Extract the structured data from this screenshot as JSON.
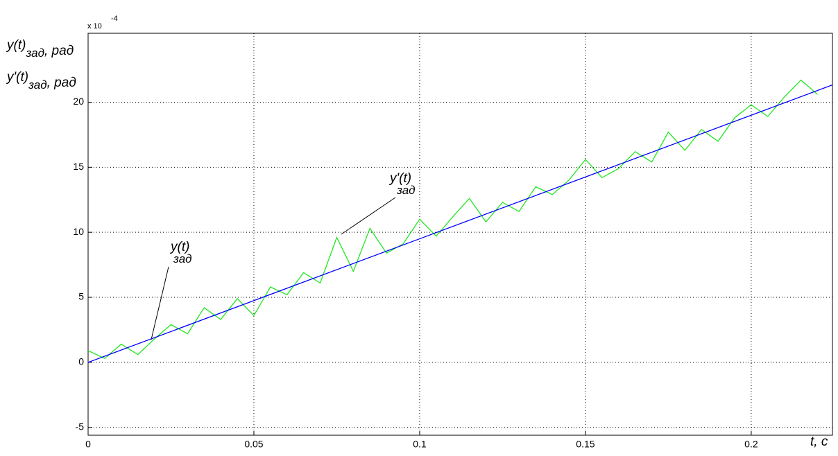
{
  "chart_data": {
    "type": "line",
    "y_label": [
      {
        "main": "y(t)",
        "sub": "зад",
        "unit": ", рад"
      },
      {
        "main": "y'(t)",
        "sub": "зад",
        "unit": ", рад"
      }
    ],
    "x_label": "t, c",
    "y_multiplier": {
      "base": "x 10",
      "exponent": "-4"
    },
    "annotations": [
      {
        "main": "y(t)",
        "sub": "зад"
      },
      {
        "main": "y'(t)",
        "sub": "зад"
      }
    ],
    "xlim": [
      0,
      0.2245
    ],
    "ylim": [
      -5.6,
      25.3
    ],
    "xticks": [
      0,
      0.05,
      0.1,
      0.15,
      0.2
    ],
    "yticks": [
      -5,
      0,
      5,
      10,
      15,
      20
    ],
    "grid": true,
    "series": [
      {
        "color": "#22e622",
        "x": [
          0,
          0.005,
          0.01,
          0.015,
          0.02,
          0.025,
          0.03,
          0.035,
          0.04,
          0.045,
          0.05,
          0.055,
          0.06,
          0.065,
          0.07,
          0.075,
          0.08,
          0.085,
          0.09,
          0.095,
          0.1,
          0.105,
          0.11,
          0.115,
          0.12,
          0.125,
          0.13,
          0.135,
          0.14,
          0.145,
          0.15,
          0.155,
          0.16,
          0.165,
          0.17,
          0.175,
          0.18,
          0.185,
          0.19,
          0.195,
          0.2,
          0.205,
          0.21,
          0.215,
          0.22
        ],
        "values": [
          0.9,
          0.3,
          1.4,
          0.6,
          1.8,
          2.9,
          2.2,
          4.2,
          3.3,
          4.9,
          3.6,
          5.8,
          5.2,
          6.9,
          6.1,
          9.6,
          7.0,
          10.3,
          8.4,
          9.1,
          11.0,
          9.7,
          11.2,
          12.6,
          10.8,
          12.3,
          11.6,
          13.5,
          12.9,
          14.0,
          15.6,
          14.2,
          14.9,
          16.2,
          15.4,
          17.7,
          16.3,
          17.9,
          17.0,
          18.8,
          19.8,
          18.9,
          20.4,
          21.7,
          20.6
        ]
      },
      {
        "color": "#0000ff",
        "x": [
          0,
          0.05,
          0.1,
          0.15,
          0.2,
          0.2245
        ],
        "values": [
          0,
          4.75,
          9.5,
          14.25,
          19.0,
          21.33
        ]
      }
    ]
  }
}
